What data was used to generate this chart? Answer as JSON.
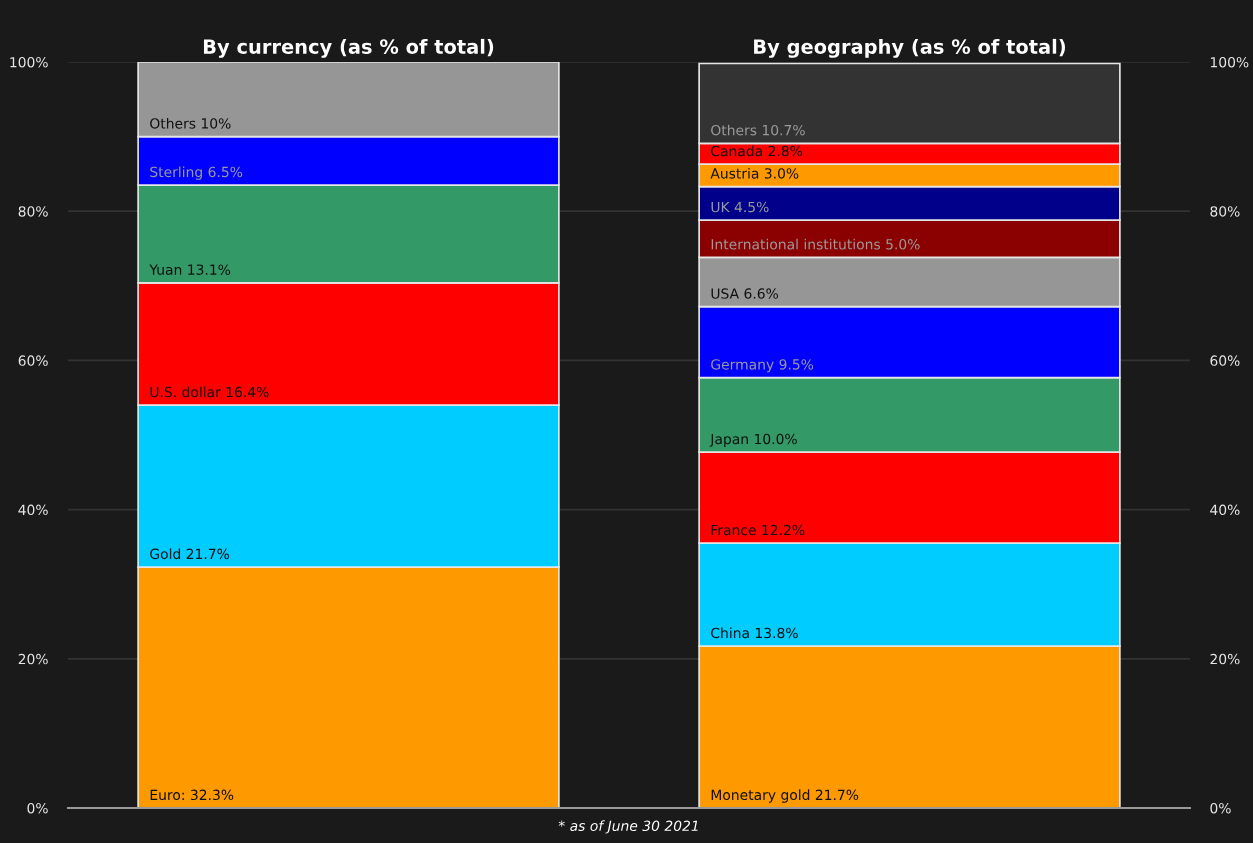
{
  "chart_data": [
    {
      "type": "bar",
      "title": "By currency (as % of total)",
      "stacked": true,
      "categories": [
        null
      ],
      "ylim": [
        0,
        100
      ],
      "yticks": [
        {
          "value": 0,
          "label": "0%"
        },
        {
          "value": 20,
          "label": "20%"
        },
        {
          "value": 40,
          "label": "40%"
        },
        {
          "value": 60,
          "label": "60%"
        },
        {
          "value": 80,
          "label": "80%"
        },
        {
          "value": 100,
          "label": "100%"
        }
      ],
      "grid": "y",
      "annotations": [
        "* as of June 30 2021"
      ],
      "series": [
        {
          "color": "#ff9900",
          "values": [
            32.3
          ],
          "value_labels": [
            "Euro: 32.3%"
          ]
        },
        {
          "color": "#00ccff",
          "values": [
            21.7
          ],
          "value_labels": [
            "Gold 21.7%"
          ]
        },
        {
          "color": "#ff0000",
          "values": [
            16.4
          ],
          "value_labels": [
            "U.S. dollar 16.4%"
          ]
        },
        {
          "color": "#339966",
          "values": [
            13.1
          ],
          "value_labels": [
            "Yuan 13.1%"
          ]
        },
        {
          "color": "#0000ff",
          "values": [
            6.5
          ],
          "value_labels": [
            "Sterling 6.5%"
          ]
        },
        {
          "color": "#969696",
          "values": [
            10
          ],
          "value_labels": [
            "Others 10%"
          ]
        }
      ]
    },
    {
      "type": "bar",
      "title": "By geography (as % of total)",
      "stacked": true,
      "categories": [
        null
      ],
      "ylim": [
        0,
        100
      ],
      "yticks": [
        {
          "value": 0,
          "label": "0%"
        },
        {
          "value": 20,
          "label": "20%"
        },
        {
          "value": 40,
          "label": "40%"
        },
        {
          "value": 60,
          "label": "60%"
        },
        {
          "value": 80,
          "label": "80%"
        },
        {
          "value": 100,
          "label": "100%"
        }
      ],
      "grid": "y",
      "series": [
        {
          "color": "#ff9900",
          "values": [
            21.7
          ],
          "value_labels": [
            "Monetary gold 21.7%"
          ]
        },
        {
          "color": "#00ccff",
          "values": [
            13.8
          ],
          "value_labels": [
            "China 13.8%"
          ]
        },
        {
          "color": "#ff0000",
          "values": [
            12.2
          ],
          "value_labels": [
            "France 12.2%"
          ]
        },
        {
          "color": "#339966",
          "values": [
            10.0
          ],
          "value_labels": [
            "Japan 10.0%"
          ]
        },
        {
          "color": "#0000ff",
          "values": [
            9.5
          ],
          "value_labels": [
            "Germany 9.5%"
          ]
        },
        {
          "color": "#969696",
          "values": [
            6.6
          ],
          "value_labels": [
            "USA 6.6%"
          ]
        },
        {
          "color": "#8b0000",
          "values": [
            5.0
          ],
          "value_labels": [
            "International institutions 5.0%"
          ]
        },
        {
          "color": "#00008b",
          "values": [
            4.5
          ],
          "value_labels": [
            "UK 4.5%"
          ]
        },
        {
          "color": "#ff9900",
          "values": [
            3.0
          ],
          "value_labels": [
            "Austria 3.0%"
          ]
        },
        {
          "color": "#ff0000",
          "values": [
            2.8
          ],
          "value_labels": [
            "Canada 2.8%"
          ]
        },
        {
          "color": "#333333",
          "values": [
            10.7
          ],
          "value_labels": [
            "Others 10.7%"
          ]
        }
      ]
    }
  ]
}
